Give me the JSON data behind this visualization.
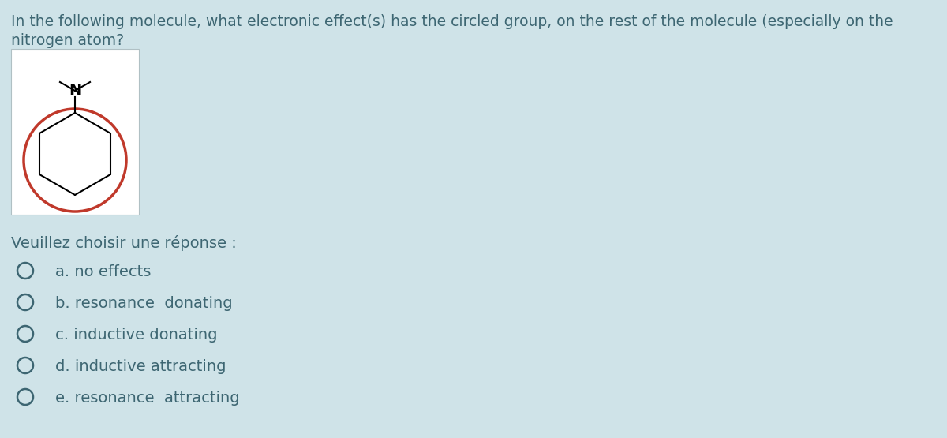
{
  "background_color": "#cfe3e8",
  "question_text_line1": "In the following molecule, what electronic effect(s) has the circled group, on the rest of the molecule (especially on the",
  "question_text_line2": "nitrogen atom?",
  "circle_color": "#c0392b",
  "prompt_text": "Veuillez choisir une réponse :",
  "options": [
    "a. no effects",
    "b. resonance  donating",
    "c. inductive donating",
    "d. inductive attracting",
    "e. resonance  attracting"
  ],
  "text_color": "#3d6672",
  "question_fontsize": 13.5,
  "option_fontsize": 14,
  "prompt_fontsize": 14
}
